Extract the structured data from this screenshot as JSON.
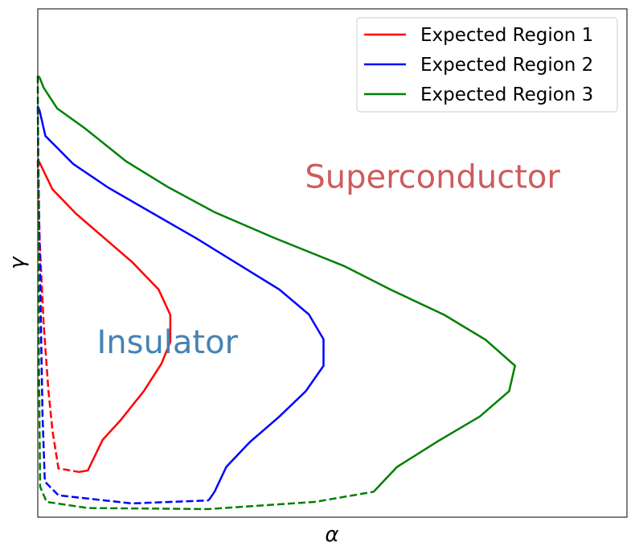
{
  "chart_data": {
    "type": "line",
    "title": "",
    "xlabel": "α",
    "ylabel": "γ",
    "xlim": [
      0,
      1
    ],
    "ylim": [
      0,
      1
    ],
    "xticks": "none",
    "yticks": "none",
    "grid": false,
    "legend_position": "top-right",
    "colors": {
      "region1": "#ff0000",
      "region2": "#0000ff",
      "region3": "#008000",
      "superconductor": "#cd5c5c",
      "insulator": "#4682b4"
    },
    "annotations": [
      {
        "text": "Superconductor",
        "color": "#cd5c5c",
        "x": 0.67,
        "y": 0.67
      },
      {
        "text": "Insulator",
        "color": "#4682b4",
        "x": 0.22,
        "y": 0.345
      }
    ],
    "series": [
      {
        "name": "Expected Region 1",
        "color": "#ff0000",
        "solid": [
          [
            0.0,
            0.702
          ],
          [
            0.002,
            0.7
          ],
          [
            0.025,
            0.645
          ],
          [
            0.065,
            0.597
          ],
          [
            0.16,
            0.502
          ],
          [
            0.205,
            0.448
          ],
          [
            0.225,
            0.398
          ],
          [
            0.225,
            0.345
          ],
          [
            0.21,
            0.302
          ],
          [
            0.18,
            0.248
          ],
          [
            0.14,
            0.19
          ],
          [
            0.11,
            0.152
          ],
          [
            0.085,
            0.092
          ],
          [
            0.07,
            0.089
          ]
        ],
        "dashed": [
          [
            0.0,
            0.702
          ],
          [
            0.003,
            0.55
          ],
          [
            0.01,
            0.38
          ],
          [
            0.018,
            0.25
          ],
          [
            0.025,
            0.17
          ],
          [
            0.035,
            0.096
          ],
          [
            0.07,
            0.089
          ]
        ]
      },
      {
        "name": "Expected Region 2",
        "color": "#0000ff",
        "solid": [
          [
            0.0,
            0.808
          ],
          [
            0.003,
            0.8
          ],
          [
            0.013,
            0.75
          ],
          [
            0.06,
            0.695
          ],
          [
            0.12,
            0.648
          ],
          [
            0.27,
            0.548
          ],
          [
            0.41,
            0.448
          ],
          [
            0.46,
            0.399
          ],
          [
            0.485,
            0.35
          ],
          [
            0.485,
            0.298
          ],
          [
            0.455,
            0.248
          ],
          [
            0.41,
            0.198
          ],
          [
            0.36,
            0.148
          ],
          [
            0.32,
            0.099
          ],
          [
            0.3,
            0.05
          ],
          [
            0.29,
            0.033
          ]
        ],
        "dashed": [
          [
            0.0,
            0.808
          ],
          [
            0.002,
            0.6
          ],
          [
            0.005,
            0.4
          ],
          [
            0.008,
            0.2
          ],
          [
            0.012,
            0.07
          ],
          [
            0.035,
            0.043
          ],
          [
            0.16,
            0.027
          ],
          [
            0.29,
            0.033
          ]
        ]
      },
      {
        "name": "Expected Region 3",
        "color": "#008000",
        "solid": [
          [
            0.0,
            0.868
          ],
          [
            0.003,
            0.865
          ],
          [
            0.01,
            0.845
          ],
          [
            0.033,
            0.804
          ],
          [
            0.08,
            0.765
          ],
          [
            0.15,
            0.7
          ],
          [
            0.22,
            0.65
          ],
          [
            0.3,
            0.6
          ],
          [
            0.4,
            0.55
          ],
          [
            0.52,
            0.494
          ],
          [
            0.6,
            0.447
          ],
          [
            0.69,
            0.398
          ],
          [
            0.76,
            0.349
          ],
          [
            0.81,
            0.298
          ],
          [
            0.8,
            0.248
          ],
          [
            0.75,
            0.198
          ],
          [
            0.68,
            0.15
          ],
          [
            0.61,
            0.099
          ],
          [
            0.57,
            0.05
          ]
        ],
        "dashed": [
          [
            0.0,
            0.868
          ],
          [
            0.001,
            0.6
          ],
          [
            0.002,
            0.3
          ],
          [
            0.004,
            0.06
          ],
          [
            0.015,
            0.03
          ],
          [
            0.085,
            0.018
          ],
          [
            0.29,
            0.016
          ],
          [
            0.47,
            0.03
          ],
          [
            0.57,
            0.05
          ]
        ]
      }
    ]
  }
}
